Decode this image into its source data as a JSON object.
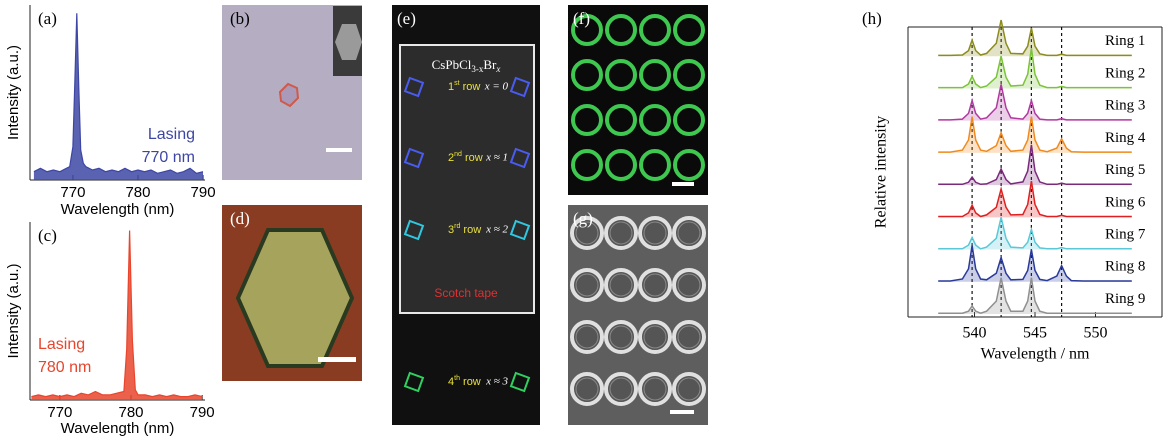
{
  "chart_data": [
    {
      "type": "area",
      "panel_label": "(a)",
      "x_label": "Wavelength (nm)",
      "y_label": "Intensity (a.u.)",
      "annotations": [
        "Lasing",
        "770 nm"
      ],
      "color": "#3d46a5",
      "x": [
        764,
        765,
        766,
        767,
        768,
        769,
        769.5,
        770,
        770.3,
        770.6,
        770.9,
        771.2,
        771.6,
        772,
        773,
        774,
        775,
        776,
        777,
        778,
        779,
        780,
        781,
        782,
        783,
        784,
        785,
        786,
        787,
        788,
        789,
        790
      ],
      "values": [
        0.05,
        0.07,
        0.05,
        0.06,
        0.05,
        0.07,
        0.08,
        0.2,
        0.6,
        1,
        0.55,
        0.18,
        0.1,
        0.08,
        0.06,
        0.07,
        0.05,
        0.06,
        0.05,
        0.07,
        0.05,
        0.06,
        0.05,
        0.06,
        0.04,
        0.05,
        0.06,
        0.04,
        0.05,
        0.07,
        0.04,
        0.05
      ],
      "xlim": [
        763.4,
        790.3
      ],
      "ylim": [
        0,
        1.05
      ],
      "xticks": [
        770,
        780,
        790
      ]
    },
    {
      "type": "area",
      "panel_label": "(c)",
      "x_label": "Wavelength (nm)",
      "y_label": "Intensity (a.u.)",
      "annotations": [
        "Lasing",
        "780 nm"
      ],
      "color": "#e8452c",
      "x": [
        766,
        767,
        768,
        769,
        770,
        771,
        772,
        773,
        774,
        775,
        776,
        777,
        778,
        779,
        779.4,
        779.8,
        780.2,
        780.6,
        781,
        782,
        783,
        784,
        785,
        786,
        787,
        788,
        789,
        790
      ],
      "values": [
        0.02,
        0.03,
        0.02,
        0.03,
        0.02,
        0.03,
        0.02,
        0.04,
        0.03,
        0.05,
        0.03,
        0.03,
        0.04,
        0.05,
        0.3,
        1,
        0.35,
        0.06,
        0.03,
        0.03,
        0.02,
        0.03,
        0.02,
        0.03,
        0.02,
        0.02,
        0.03,
        0.02
      ],
      "xlim": [
        765.8,
        790.4
      ],
      "ylim": [
        0,
        1.05
      ],
      "xticks": [
        770,
        780,
        790
      ]
    },
    {
      "type": "line",
      "offset": true,
      "panel_label": "(h)",
      "x_label": "Wavelength / nm",
      "y_label": "Relative intensity",
      "markers": [
        539.8,
        542.2,
        544.7,
        547.2
      ],
      "x": [
        537,
        538,
        539,
        539.5,
        539.8,
        540.1,
        540.5,
        541,
        541.8,
        542.2,
        542.6,
        543,
        544,
        544.4,
        544.7,
        545,
        545.4,
        546,
        546.8,
        547.2,
        547.6,
        548,
        549,
        550,
        551,
        552,
        553
      ],
      "xlim": [
        534.5,
        555.5
      ],
      "xticks": [
        540,
        545,
        550
      ],
      "series": [
        {
          "name": "Ring 1",
          "color": "#8c8c1e",
          "values": [
            0.02,
            0.02,
            0.03,
            0.14,
            0.4,
            0.14,
            0.03,
            0.07,
            0.32,
            0.9,
            0.32,
            0.07,
            0.06,
            0.25,
            0.7,
            0.25,
            0.06,
            0.02,
            0.02,
            0.05,
            0.02,
            0.02,
            0.02,
            0.02,
            0.02,
            0.02,
            0.02
          ]
        },
        {
          "name": "Ring 2",
          "color": "#7cc23a",
          "values": [
            0.02,
            0.02,
            0.02,
            0.11,
            0.3,
            0.11,
            0.02,
            0.06,
            0.28,
            0.8,
            0.28,
            0.06,
            0.08,
            0.35,
            1,
            0.35,
            0.08,
            0.02,
            0.02,
            0.05,
            0.02,
            0.02,
            0.02,
            0.02,
            0.02,
            0.02,
            0.02
          ]
        },
        {
          "name": "Ring 3",
          "color": "#b03aa0",
          "values": [
            0.02,
            0.02,
            0.04,
            0.18,
            0.5,
            0.18,
            0.04,
            0.07,
            0.32,
            0.9,
            0.32,
            0.07,
            0.04,
            0.18,
            0.5,
            0.18,
            0.04,
            0.02,
            0.02,
            0.05,
            0.02,
            0.02,
            0.02,
            0.02,
            0.02,
            0.02,
            0.02
          ]
        },
        {
          "name": "Ring 4",
          "color": "#f08a1e",
          "values": [
            0.02,
            0.02,
            0.07,
            0.32,
            0.9,
            0.32,
            0.07,
            0.04,
            0.18,
            0.5,
            0.18,
            0.04,
            0.07,
            0.32,
            0.9,
            0.32,
            0.07,
            0.03,
            0.12,
            0.35,
            0.12,
            0.03,
            0.02,
            0.02,
            0.02,
            0.02,
            0.02
          ]
        },
        {
          "name": "Ring 5",
          "color": "#7a2a7a",
          "values": [
            0.02,
            0.02,
            0.02,
            0.07,
            0.2,
            0.07,
            0.02,
            0.03,
            0.14,
            0.4,
            0.14,
            0.03,
            0.08,
            0.35,
            1,
            0.35,
            0.08,
            0.02,
            0.02,
            0.05,
            0.02,
            0.02,
            0.02,
            0.02,
            0.02,
            0.02,
            0.02
          ]
        },
        {
          "name": "Ring 6",
          "color": "#e02020",
          "values": [
            0.02,
            0.02,
            0.02,
            0.11,
            0.3,
            0.11,
            0.02,
            0.06,
            0.25,
            0.7,
            0.25,
            0.06,
            0.07,
            0.32,
            0.9,
            0.32,
            0.07,
            0.02,
            0.02,
            0.05,
            0.02,
            0.02,
            0.02,
            0.02,
            0.02,
            0.02,
            0.02
          ]
        },
        {
          "name": "Ring 7",
          "color": "#5ac8d8",
          "values": [
            0.02,
            0.02,
            0.02,
            0.11,
            0.3,
            0.11,
            0.02,
            0.06,
            0.28,
            0.8,
            0.28,
            0.06,
            0.04,
            0.18,
            0.5,
            0.18,
            0.04,
            0.02,
            0.02,
            0.05,
            0.02,
            0.02,
            0.02,
            0.02,
            0.02,
            0.02,
            0.02
          ]
        },
        {
          "name": "Ring 8",
          "color": "#2a3a9a",
          "values": [
            0.02,
            0.02,
            0.07,
            0.32,
            0.9,
            0.32,
            0.07,
            0.05,
            0.21,
            0.6,
            0.21,
            0.05,
            0.06,
            0.28,
            0.8,
            0.28,
            0.06,
            0.03,
            0.14,
            0.4,
            0.14,
            0.03,
            0.02,
            0.02,
            0.02,
            0.02,
            0.02
          ]
        },
        {
          "name": "Ring 9",
          "color": "#909090",
          "values": [
            0.02,
            0.02,
            0.02,
            0.07,
            0.2,
            0.07,
            0.02,
            0.07,
            0.32,
            0.9,
            0.32,
            0.07,
            0.07,
            0.32,
            0.9,
            0.32,
            0.07,
            0.02,
            0.02,
            0.02,
            0.02,
            0.02,
            0.02,
            0.02,
            0.02,
            0.02,
            0.02
          ]
        }
      ]
    }
  ],
  "panels": {
    "b": {
      "label": "(b)"
    },
    "d": {
      "label": "(d)"
    },
    "e": {
      "label": "(e)",
      "title": [
        "CsPbCl",
        "3-x",
        "Br",
        "x"
      ],
      "rows": [
        {
          "n": "1",
          "sup": "st",
          "word": " row",
          "x": "x = 0"
        },
        {
          "n": "2",
          "sup": "nd",
          "word": " row",
          "x": "x ≈ 1"
        },
        {
          "n": "3",
          "sup": "rd",
          "word": " row",
          "x": "x ≈ 2"
        },
        {
          "n": "4",
          "sup": "th",
          "word": " row",
          "x": "x ≈ 3"
        }
      ],
      "tape": "Scotch tape"
    },
    "f": {
      "label": "(f)"
    },
    "g": {
      "label": "(g)"
    }
  }
}
